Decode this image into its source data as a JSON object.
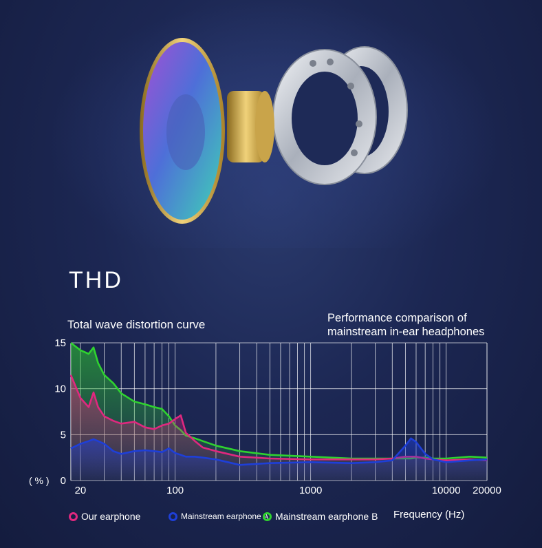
{
  "header": {
    "title": "THD",
    "subtitle_left": "Total wave distortion curve",
    "subtitle_right_line1": "Performance comparison of",
    "subtitle_right_line2": "mainstream in-ear headphones"
  },
  "chart_data": {
    "type": "area",
    "title": "Total wave distortion curve",
    "xlabel": "Frequency (Hz)",
    "ylabel": "( % )",
    "x_scale": "log",
    "xlim": [
      17,
      20000
    ],
    "ylim": [
      0,
      15
    ],
    "x_ticks": [
      20,
      100,
      1000,
      10000,
      20000
    ],
    "x_tick_labels": [
      "20",
      "100",
      "1000",
      "10000",
      "20000"
    ],
    "y_ticks": [
      0,
      5,
      10,
      15
    ],
    "y_tick_labels": [
      "0",
      "5",
      "10",
      "15"
    ],
    "grid": true,
    "legend_position": "bottom",
    "x": [
      17,
      20,
      23,
      25,
      27,
      30,
      35,
      40,
      50,
      60,
      70,
      80,
      90,
      100,
      110,
      120,
      140,
      160,
      200,
      300,
      500,
      1000,
      2000,
      3000,
      4000,
      5000,
      5500,
      6000,
      7000,
      8000,
      10000,
      15000,
      20000
    ],
    "series": [
      {
        "name": "Our earphone",
        "color": "#e0287f",
        "values": [
          11.5,
          9.0,
          8.0,
          9.6,
          8.0,
          7.0,
          6.5,
          6.2,
          6.4,
          5.8,
          5.6,
          6.0,
          6.2,
          6.7,
          7.1,
          5.2,
          4.3,
          3.6,
          3.2,
          2.6,
          2.4,
          2.3,
          2.3,
          2.3,
          2.4,
          2.6,
          2.6,
          2.6,
          2.4,
          2.3,
          2.2,
          2.3,
          2.2
        ]
      },
      {
        "name": "Mainstream earphone A",
        "color": "#1e3fd8",
        "values": [
          3.5,
          4.0,
          4.3,
          4.5,
          4.3,
          4.0,
          3.2,
          2.9,
          3.2,
          3.3,
          3.2,
          3.1,
          3.5,
          3.0,
          2.8,
          2.6,
          2.6,
          2.5,
          2.3,
          1.7,
          1.9,
          2.0,
          1.9,
          2.0,
          2.2,
          3.8,
          4.6,
          4.2,
          2.9,
          2.3,
          2.0,
          2.2,
          2.3
        ]
      },
      {
        "name": "Mainstream earphone B",
        "color": "#2fd22f",
        "values": [
          15,
          14.2,
          13.8,
          14.5,
          12.8,
          11.5,
          10.6,
          9.5,
          8.6,
          8.3,
          8.0,
          7.8,
          7.0,
          6.0,
          5.5,
          4.9,
          4.6,
          4.3,
          3.8,
          3.2,
          2.8,
          2.6,
          2.4,
          2.4,
          2.4,
          2.4,
          2.4,
          2.5,
          2.5,
          2.4,
          2.4,
          2.6,
          2.5
        ]
      }
    ]
  },
  "legend": {
    "unit_label": "Frequency",
    "unit_paren": "(Hz)"
  }
}
